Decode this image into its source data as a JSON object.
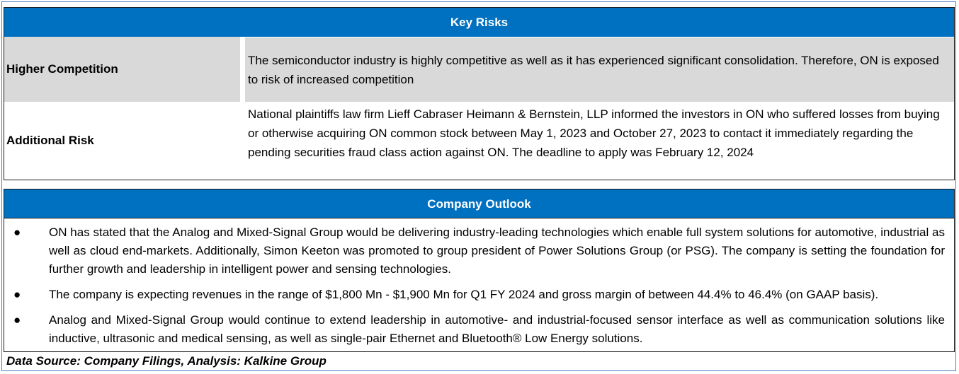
{
  "colors": {
    "header_blue": "#0070c0",
    "row_gray": "#d9d9d9",
    "header_text": "#ffffff"
  },
  "key_risks": {
    "title": "Key Risks",
    "rows": [
      {
        "label": "Higher Competition",
        "text": "The semiconductor industry is highly competitive as well as it has experienced significant consolidation. Therefore, ON is exposed to risk of increased competition"
      },
      {
        "label": "Additional Risk",
        "text": "National plaintiffs law firm Lieff Cabraser Heimann & Bernstein, LLP informed the investors in ON who suffered losses from buying or otherwise acquiring ON common stock between May 1, 2023 and October 27, 2023 to contact it immediately regarding the pending securities fraud class action against ON. The deadline to apply was February 12, 2024"
      }
    ]
  },
  "company_outlook": {
    "title": "Company Outlook",
    "bullet_icon": "bullet-dot-icon",
    "bullets": [
      "ON has stated that the Analog and Mixed-Signal Group would be delivering industry-leading technologies which enable full system solutions for automotive, industrial as well as cloud end-markets. Additionally, Simon Keeton was promoted to group president of Power Solutions Group (or PSG). The company is setting the foundation for further growth and leadership in intelligent power and sensing technologies.",
      "The company is expecting revenues in the range of $1,800 Mn - $1,900 Mn for Q1 FY 2024 and gross margin of between 44.4% to 46.4% (on GAAP basis).",
      "Analog and Mixed-Signal Group would continue to extend leadership in automotive- and industrial-focused sensor interface as well as communication solutions like inductive, ultrasonic and medical sensing, as well as single-pair Ethernet and Bluetooth® Low Energy solutions."
    ]
  },
  "source_note": "Data Source: Company Filings, Analysis: Kalkine Group"
}
